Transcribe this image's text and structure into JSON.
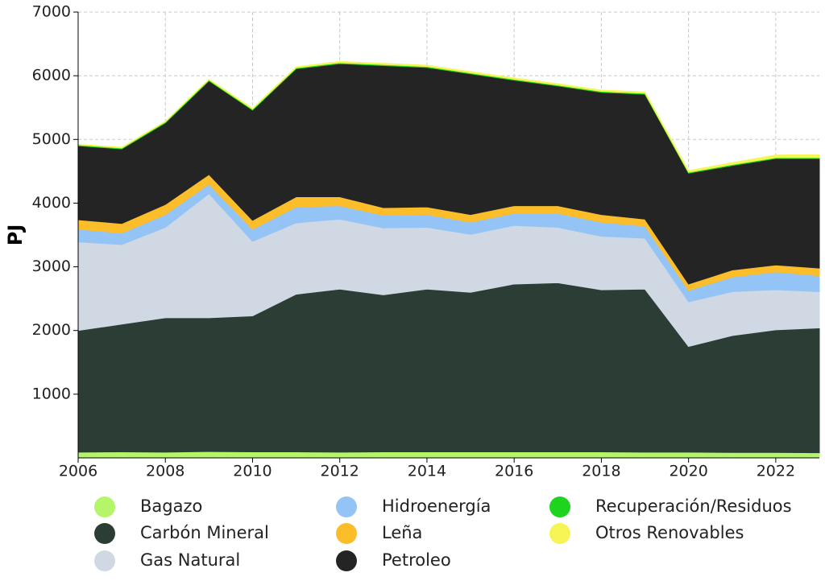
{
  "chart_data": {
    "type": "stacked_area",
    "y_label": "PJ",
    "x": [
      2006,
      2007,
      2008,
      2009,
      2010,
      2011,
      2012,
      2013,
      2014,
      2015,
      2016,
      2017,
      2018,
      2019,
      2020,
      2021,
      2022,
      2023
    ],
    "xlim": [
      2006,
      2023
    ],
    "xticks": [
      2006,
      2008,
      2010,
      2012,
      2014,
      2016,
      2018,
      2020,
      2022
    ],
    "ylim": [
      0,
      7000
    ],
    "yticks": [
      1000,
      2000,
      3000,
      4000,
      5000,
      6000,
      7000
    ],
    "grid": true,
    "legend": "bottom",
    "series": [
      {
        "name": "Bagazo",
        "color": "#b4f56a",
        "values": [
          90,
          95,
          90,
          100,
          95,
          95,
          90,
          95,
          95,
          95,
          95,
          95,
          95,
          90,
          90,
          85,
          85,
          80
        ]
      },
      {
        "name": "Carbón Mineral",
        "color": "#2b3d35",
        "values": [
          1910,
          2005,
          2110,
          2100,
          2135,
          2475,
          2560,
          2465,
          2555,
          2505,
          2635,
          2655,
          2545,
          2560,
          1660,
          1835,
          1925,
          1960
        ]
      },
      {
        "name": "Gas Natural",
        "color": "#cfd8e3",
        "values": [
          1390,
          1250,
          1420,
          1950,
          1170,
          1120,
          1100,
          1050,
          970,
          910,
          920,
          870,
          840,
          800,
          700,
          690,
          630,
          570
        ]
      },
      {
        "name": "Hidroenergía",
        "color": "#94c4f5",
        "values": [
          200,
          180,
          200,
          150,
          190,
          250,
          210,
          200,
          200,
          190,
          190,
          220,
          220,
          190,
          180,
          230,
          280,
          250
        ]
      },
      {
        "name": "Leña",
        "color": "#fbbd2a",
        "values": [
          150,
          150,
          160,
          150,
          140,
          160,
          140,
          120,
          120,
          120,
          120,
          120,
          120,
          110,
          100,
          110,
          110,
          120
        ]
      },
      {
        "name": "Petroleo",
        "color": "#242424",
        "values": [
          1160,
          1170,
          1280,
          1470,
          1730,
          2010,
          2090,
          2230,
          2190,
          2210,
          1970,
          1880,
          1920,
          1960,
          1740,
          1640,
          1670,
          1720
        ]
      },
      {
        "name": "Recuperación/Residuos",
        "color": "#1ed41e",
        "values": [
          15,
          15,
          15,
          15,
          15,
          15,
          15,
          15,
          15,
          15,
          15,
          15,
          15,
          15,
          15,
          15,
          15,
          15
        ]
      },
      {
        "name": "Otros Renovables",
        "color": "#f5f556",
        "values": [
          10,
          10,
          10,
          10,
          15,
          15,
          20,
          20,
          20,
          20,
          20,
          20,
          20,
          20,
          25,
          30,
          40,
          45
        ]
      }
    ]
  }
}
